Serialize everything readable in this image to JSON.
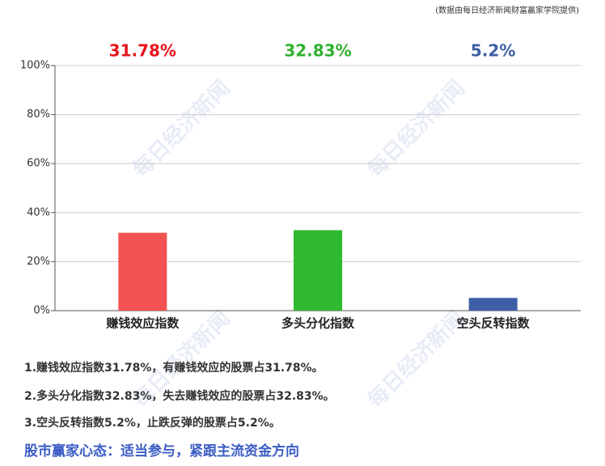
{
  "chart_data": {
    "type": "bar",
    "source": "(数据由每日经济新闻财富赢家学院提供)",
    "watermark": "每日经济新闻",
    "categories": [
      "赚钱效应指数",
      "多头分化指数",
      "空头反转指数"
    ],
    "values": [
      31.78,
      32.83,
      5.2
    ],
    "value_labels": [
      "31.78%",
      "32.83%",
      "5.2%"
    ],
    "colors": [
      "#f45252",
      "#30b830",
      "#3e5fa6"
    ],
    "label_colors": [
      "#e8141c",
      "#30b030",
      "#3e5fa6"
    ],
    "ylim": [
      0,
      100
    ],
    "yticks": [
      {
        "value": 0,
        "label": "0%"
      },
      {
        "value": 20,
        "label": "20%"
      },
      {
        "value": 40,
        "label": "40%"
      },
      {
        "value": 60,
        "label": "60%"
      },
      {
        "value": 80,
        "label": "80%"
      },
      {
        "value": 100,
        "label": "100%"
      }
    ],
    "grid": true
  },
  "notes": [
    "1.赚钱效应指数31.78%，有赚钱效应的股票占31.78%。",
    "2.多头分化指数32.83%，失去赚钱效应的股票占32.83%。",
    "3.空头反转指数5.2%，止跌反弹的股票占5.2%。"
  ],
  "conclusion": "股市赢家心态：适当参与，紧跟主流资金方向"
}
